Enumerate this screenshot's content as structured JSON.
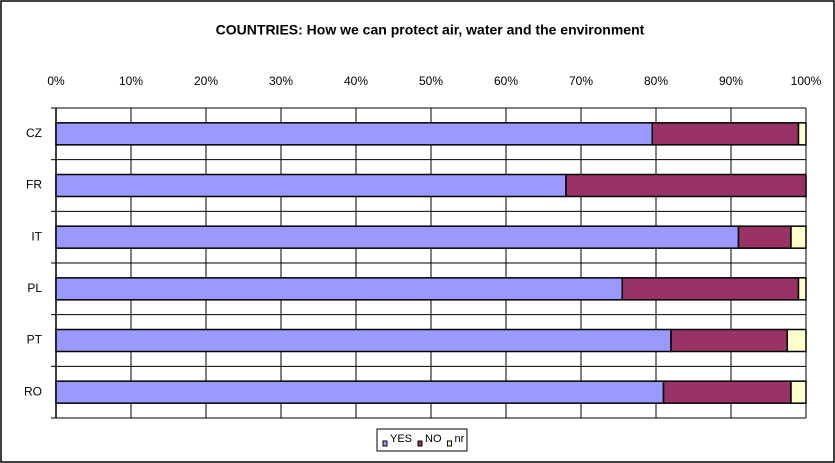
{
  "chart_data": {
    "type": "stacked_barh",
    "title": "COUNTRIES: How we can protect air, water and the environment",
    "categories": [
      "CZ",
      "FR",
      "IT",
      "PL",
      "PT",
      "RO"
    ],
    "series": [
      {
        "name": "YES",
        "color": "#9999ff",
        "values": [
          79.5,
          68,
          91,
          75.5,
          82,
          81
        ]
      },
      {
        "name": "NO",
        "color": "#993366",
        "values": [
          19.5,
          32,
          7,
          23.5,
          15.5,
          17
        ]
      },
      {
        "name": "nr",
        "color": "#ffffcc",
        "values": [
          1,
          0,
          2,
          1,
          2.5,
          2
        ]
      }
    ],
    "xlim": [
      0,
      100
    ],
    "xticks": [
      {
        "value": 0,
        "label": "0%"
      },
      {
        "value": 10,
        "label": "10%"
      },
      {
        "value": 20,
        "label": "20%"
      },
      {
        "value": 30,
        "label": "30%"
      },
      {
        "value": 40,
        "label": "40%"
      },
      {
        "value": 50,
        "label": "50%"
      },
      {
        "value": 60,
        "label": "60%"
      },
      {
        "value": 70,
        "label": "70%"
      },
      {
        "value": 80,
        "label": "80%"
      },
      {
        "value": 90,
        "label": "90%"
      },
      {
        "value": 100,
        "label": "100%"
      }
    ],
    "grid": true,
    "legend": "bottom"
  }
}
